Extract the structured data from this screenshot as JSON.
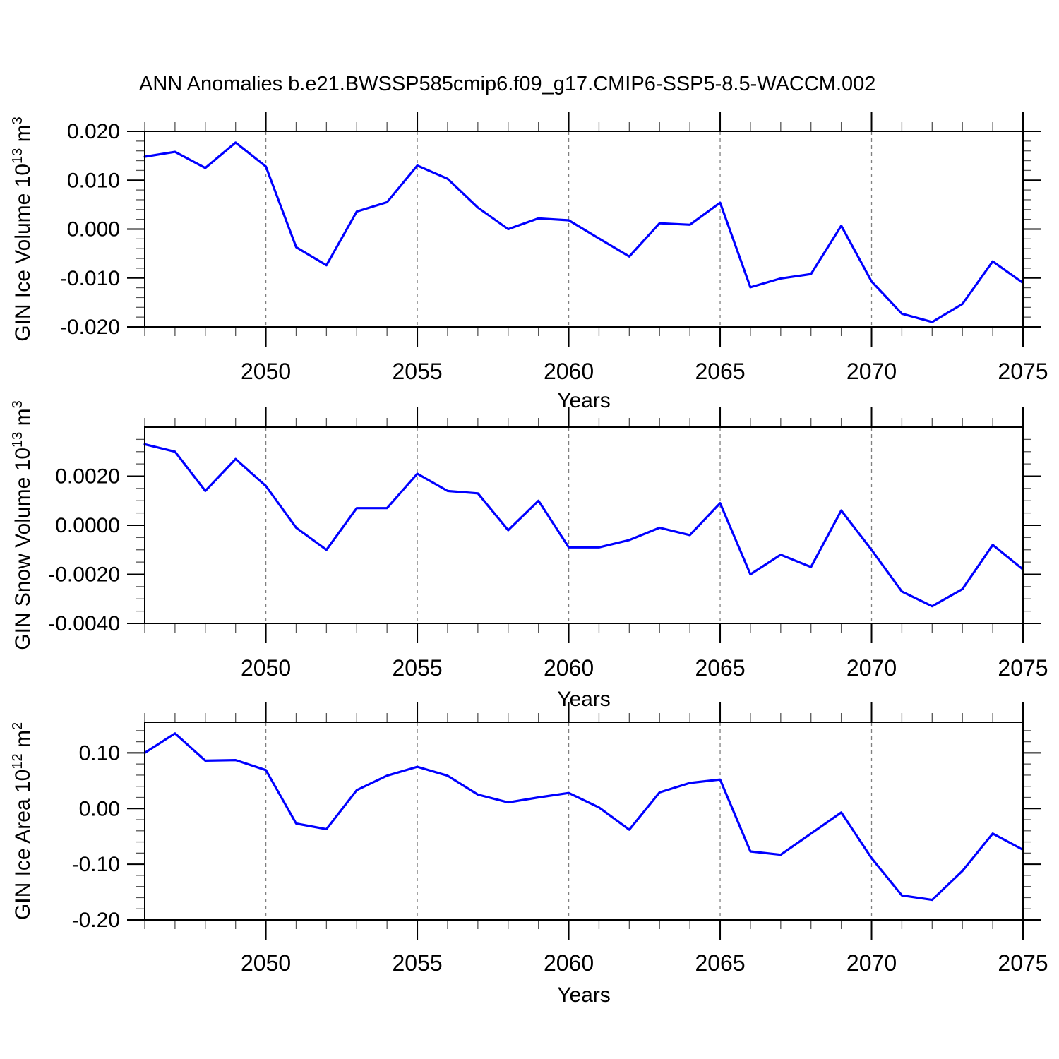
{
  "title": "ANN Anomalies b.e21.BWSSP585cmip6.f09_g17.CMIP6-SSP5-8.5-WACCM.002",
  "colors": {
    "line": "#0000ff",
    "axis": "#000000",
    "major_tick": "#000000",
    "minor_tick": "#555555",
    "gridline": "#7f7f7f",
    "background": "#ffffff",
    "text": "#000000"
  },
  "chart_data": {
    "type": "line",
    "x_label": "Years",
    "xticks": [
      2050,
      2055,
      2060,
      2065,
      2070,
      2075
    ],
    "xlim": [
      2046,
      2075
    ],
    "grid": "vertical-dashed-at-major-xticks",
    "legend": "none",
    "years": [
      2046,
      2047,
      2048,
      2049,
      2050,
      2051,
      2052,
      2053,
      2054,
      2055,
      2056,
      2057,
      2058,
      2059,
      2060,
      2061,
      2062,
      2063,
      2064,
      2065,
      2066,
      2067,
      2068,
      2069,
      2070,
      2071,
      2072,
      2073,
      2074,
      2075
    ],
    "panels": [
      {
        "ylabel": "GIN Ice Volume 10^13 m^3",
        "ylabel_parts": [
          {
            "t": "GIN Ice Volume 10"
          },
          {
            "t": "13",
            "sup": true
          },
          {
            "t": " m"
          },
          {
            "t": "3",
            "sup": true
          }
        ],
        "ylim": [
          -0.02,
          0.02
        ],
        "ytick_minor_step": 0.002,
        "yticks": [
          {
            "v": 0.02,
            "label": "0.020"
          },
          {
            "v": 0.01,
            "label": "0.010"
          },
          {
            "v": 0.0,
            "label": "0.000"
          },
          {
            "v": -0.01,
            "label": "-0.010"
          },
          {
            "v": -0.02,
            "label": "-0.020"
          }
        ],
        "values": [
          0.0148,
          0.0158,
          0.0125,
          0.0177,
          0.0128,
          -0.0037,
          -0.0074,
          0.0036,
          0.0055,
          0.013,
          0.0103,
          0.0044,
          0.0,
          0.0022,
          0.0018,
          -0.0019,
          -0.0056,
          0.0012,
          0.0009,
          0.0054,
          -0.0119,
          -0.0101,
          -0.0092,
          0.0007,
          -0.0107,
          -0.0173,
          -0.019,
          -0.0153,
          -0.0066,
          -0.011
        ]
      },
      {
        "ylabel": "GIN Snow Volume 10^13 m^3",
        "ylabel_parts": [
          {
            "t": "GIN Snow Volume 10"
          },
          {
            "t": "13",
            "sup": true
          },
          {
            "t": " m"
          },
          {
            "t": "3",
            "sup": true
          }
        ],
        "ylim": [
          -0.004,
          0.004
        ],
        "ytick_minor_step": 0.0005,
        "yticks": [
          {
            "v": 0.002,
            "label": "0.0020"
          },
          {
            "v": 0.0,
            "label": "0.0000"
          },
          {
            "v": -0.002,
            "label": "-0.0020"
          },
          {
            "v": -0.004,
            "label": "-0.0040"
          }
        ],
        "values": [
          0.0033,
          0.003,
          0.0014,
          0.0027,
          0.0016,
          -0.0001,
          -0.001,
          0.0007,
          0.0007,
          0.0021,
          0.0014,
          0.0013,
          -0.0002,
          0.001,
          -0.0009,
          -0.0009,
          -0.0006,
          -0.0001,
          -0.0004,
          0.0009,
          -0.002,
          -0.0012,
          -0.0017,
          0.0006,
          -0.001,
          -0.0027,
          -0.0033,
          -0.0026,
          -0.0008,
          -0.0018
        ]
      },
      {
        "ylabel": "GIN Ice Area 10^12 m^2",
        "ylabel_parts": [
          {
            "t": "GIN Ice Area 10"
          },
          {
            "t": "12",
            "sup": true
          },
          {
            "t": " m"
          },
          {
            "t": "2",
            "sup": true
          }
        ],
        "ylim": [
          -0.2,
          0.155
        ],
        "ytick_minor_step": 0.02,
        "yticks": [
          {
            "v": 0.1,
            "label": "0.10"
          },
          {
            "v": 0.0,
            "label": "0.00"
          },
          {
            "v": -0.1,
            "label": "-0.10"
          },
          {
            "v": -0.2,
            "label": "-0.20"
          }
        ],
        "values": [
          0.1,
          0.135,
          0.086,
          0.087,
          0.069,
          -0.027,
          -0.037,
          0.033,
          0.059,
          0.075,
          0.059,
          0.025,
          0.011,
          0.02,
          0.028,
          0.002,
          -0.038,
          0.029,
          0.046,
          0.052,
          -0.077,
          -0.083,
          -0.045,
          -0.007,
          -0.089,
          -0.156,
          -0.164,
          -0.112,
          -0.045,
          -0.074
        ]
      }
    ]
  }
}
